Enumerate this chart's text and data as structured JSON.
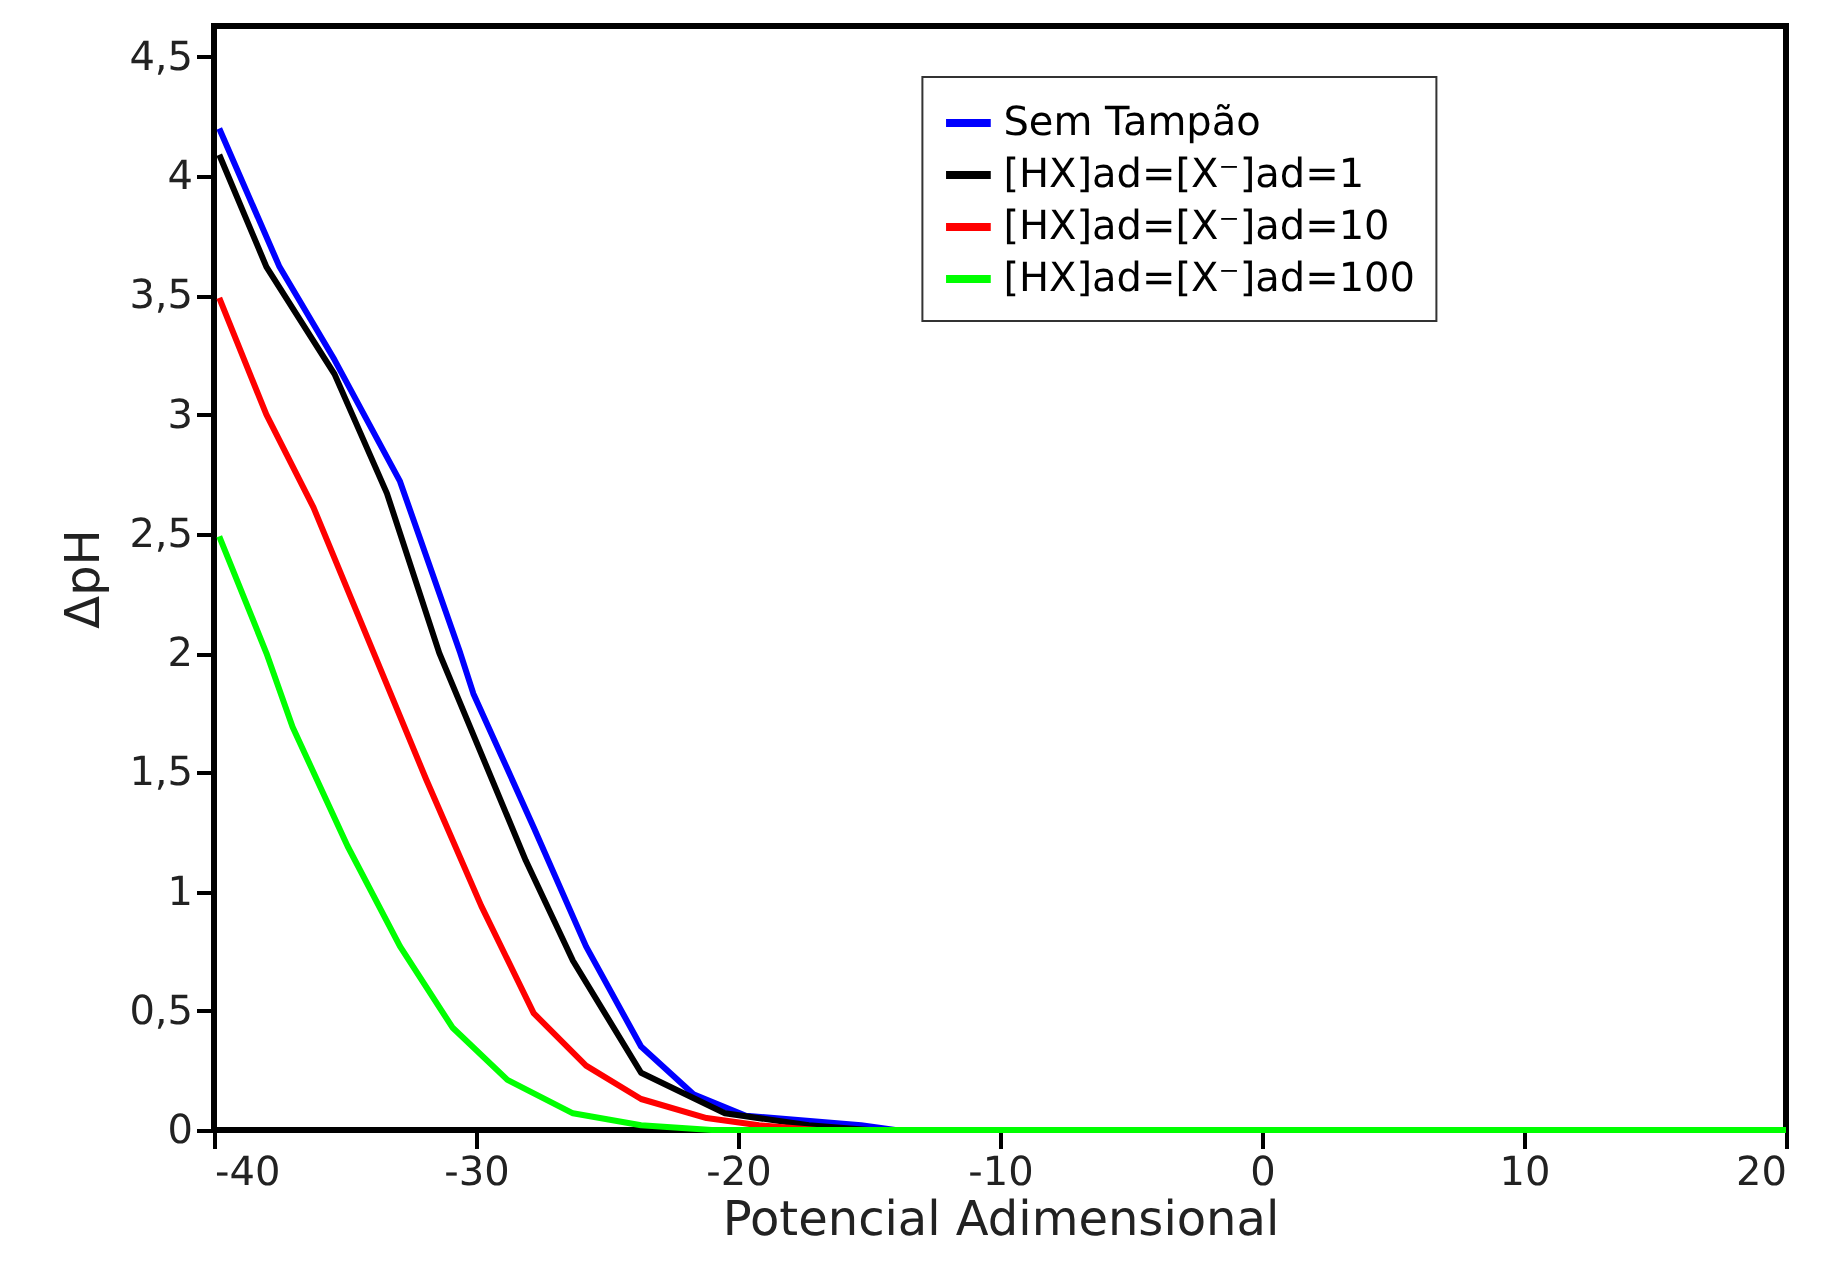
{
  "chart_data": {
    "type": "line",
    "xlabel": "Potencial Adimensional",
    "ylabel": "ΔpH",
    "xlim": [
      -40,
      20
    ],
    "ylim": [
      0,
      4.63
    ],
    "xticks": [
      -40,
      -30,
      -20,
      -10,
      0,
      10,
      20
    ],
    "yticks": [
      0,
      {
        "value": 0.5,
        "label": "0,5"
      },
      1,
      {
        "value": 1.5,
        "label": "1,5"
      },
      2,
      {
        "value": 2.5,
        "label": "2,5"
      },
      3,
      {
        "value": 3.5,
        "label": "3,5"
      },
      4,
      {
        "value": 4.5,
        "label": "4,5"
      }
    ],
    "grid": false,
    "legend": "top right",
    "marker": "none",
    "line_style": "solid",
    "series": [
      {
        "name": "Sem Tampão",
        "color": "#0000ff",
        "x": [
          -39.8,
          -37.5,
          -35.4,
          -32.9,
          -30.6,
          -30.1,
          -27.8,
          -25.8,
          -23.7,
          -21.7,
          -19.7,
          -15.3,
          -14,
          20
        ],
        "values": [
          4.2,
          3.62,
          3.23,
          2.72,
          2.0,
          1.83,
          1.27,
          0.77,
          0.35,
          0.15,
          0.06,
          0.02,
          0,
          0
        ]
      },
      {
        "name": "[HX]ad=[X⁻]ad=1",
        "color": "#000000",
        "x": [
          -39.8,
          -38,
          -35.4,
          -33.4,
          -31.4,
          -28.1,
          -26.3,
          -23.7,
          -20.5,
          -17.3,
          -15,
          20
        ],
        "values": [
          4.09,
          3.62,
          3.17,
          2.67,
          2.0,
          1.13,
          0.71,
          0.24,
          0.07,
          0.02,
          0,
          0
        ]
      },
      {
        "name": "[HX]ad=[X⁻]ad=10",
        "color": "#ff0000",
        "x": [
          -39.8,
          -38,
          -36.2,
          -33.9,
          -31.9,
          -29.8,
          -27.8,
          -25.8,
          -23.7,
          -21.2,
          -19.2,
          -17,
          20
        ],
        "values": [
          3.49,
          3.0,
          2.61,
          2.0,
          1.47,
          0.94,
          0.49,
          0.27,
          0.13,
          0.05,
          0.02,
          0,
          0
        ]
      },
      {
        "name": "[HX]ad=[X⁻]ad=100",
        "color": "#00ff00",
        "x": [
          -39.8,
          -38,
          -37,
          -34.9,
          -32.9,
          -30.9,
          -28.8,
          -26.3,
          -23.7,
          -21,
          20
        ],
        "values": [
          2.49,
          2.0,
          1.69,
          1.19,
          0.77,
          0.43,
          0.21,
          0.07,
          0.02,
          0,
          0
        ]
      }
    ]
  }
}
